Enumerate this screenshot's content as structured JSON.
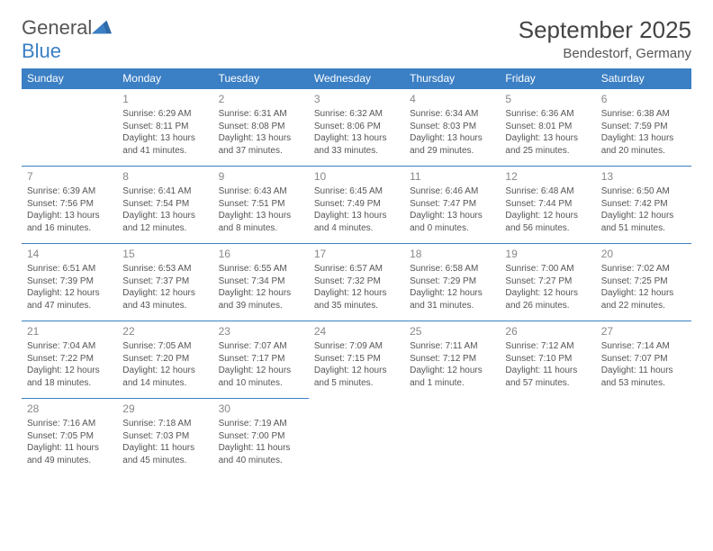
{
  "logo": {
    "text1": "General",
    "text2": "Blue",
    "color1": "#555555",
    "color2": "#3b7fc4"
  },
  "title": "September 2025",
  "location": "Bendestorf, Germany",
  "colors": {
    "header_bg": "#3b7fc4",
    "header_text": "#ffffff",
    "border": "#3b7fc4",
    "text": "#555555",
    "daynum": "#888888"
  },
  "day_headers": [
    "Sunday",
    "Monday",
    "Tuesday",
    "Wednesday",
    "Thursday",
    "Friday",
    "Saturday"
  ],
  "weeks": [
    [
      null,
      {
        "num": "1",
        "sunrise": "Sunrise: 6:29 AM",
        "sunset": "Sunset: 8:11 PM",
        "daylight": "Daylight: 13 hours and 41 minutes."
      },
      {
        "num": "2",
        "sunrise": "Sunrise: 6:31 AM",
        "sunset": "Sunset: 8:08 PM",
        "daylight": "Daylight: 13 hours and 37 minutes."
      },
      {
        "num": "3",
        "sunrise": "Sunrise: 6:32 AM",
        "sunset": "Sunset: 8:06 PM",
        "daylight": "Daylight: 13 hours and 33 minutes."
      },
      {
        "num": "4",
        "sunrise": "Sunrise: 6:34 AM",
        "sunset": "Sunset: 8:03 PM",
        "daylight": "Daylight: 13 hours and 29 minutes."
      },
      {
        "num": "5",
        "sunrise": "Sunrise: 6:36 AM",
        "sunset": "Sunset: 8:01 PM",
        "daylight": "Daylight: 13 hours and 25 minutes."
      },
      {
        "num": "6",
        "sunrise": "Sunrise: 6:38 AM",
        "sunset": "Sunset: 7:59 PM",
        "daylight": "Daylight: 13 hours and 20 minutes."
      }
    ],
    [
      {
        "num": "7",
        "sunrise": "Sunrise: 6:39 AM",
        "sunset": "Sunset: 7:56 PM",
        "daylight": "Daylight: 13 hours and 16 minutes."
      },
      {
        "num": "8",
        "sunrise": "Sunrise: 6:41 AM",
        "sunset": "Sunset: 7:54 PM",
        "daylight": "Daylight: 13 hours and 12 minutes."
      },
      {
        "num": "9",
        "sunrise": "Sunrise: 6:43 AM",
        "sunset": "Sunset: 7:51 PM",
        "daylight": "Daylight: 13 hours and 8 minutes."
      },
      {
        "num": "10",
        "sunrise": "Sunrise: 6:45 AM",
        "sunset": "Sunset: 7:49 PM",
        "daylight": "Daylight: 13 hours and 4 minutes."
      },
      {
        "num": "11",
        "sunrise": "Sunrise: 6:46 AM",
        "sunset": "Sunset: 7:47 PM",
        "daylight": "Daylight: 13 hours and 0 minutes."
      },
      {
        "num": "12",
        "sunrise": "Sunrise: 6:48 AM",
        "sunset": "Sunset: 7:44 PM",
        "daylight": "Daylight: 12 hours and 56 minutes."
      },
      {
        "num": "13",
        "sunrise": "Sunrise: 6:50 AM",
        "sunset": "Sunset: 7:42 PM",
        "daylight": "Daylight: 12 hours and 51 minutes."
      }
    ],
    [
      {
        "num": "14",
        "sunrise": "Sunrise: 6:51 AM",
        "sunset": "Sunset: 7:39 PM",
        "daylight": "Daylight: 12 hours and 47 minutes."
      },
      {
        "num": "15",
        "sunrise": "Sunrise: 6:53 AM",
        "sunset": "Sunset: 7:37 PM",
        "daylight": "Daylight: 12 hours and 43 minutes."
      },
      {
        "num": "16",
        "sunrise": "Sunrise: 6:55 AM",
        "sunset": "Sunset: 7:34 PM",
        "daylight": "Daylight: 12 hours and 39 minutes."
      },
      {
        "num": "17",
        "sunrise": "Sunrise: 6:57 AM",
        "sunset": "Sunset: 7:32 PM",
        "daylight": "Daylight: 12 hours and 35 minutes."
      },
      {
        "num": "18",
        "sunrise": "Sunrise: 6:58 AM",
        "sunset": "Sunset: 7:29 PM",
        "daylight": "Daylight: 12 hours and 31 minutes."
      },
      {
        "num": "19",
        "sunrise": "Sunrise: 7:00 AM",
        "sunset": "Sunset: 7:27 PM",
        "daylight": "Daylight: 12 hours and 26 minutes."
      },
      {
        "num": "20",
        "sunrise": "Sunrise: 7:02 AM",
        "sunset": "Sunset: 7:25 PM",
        "daylight": "Daylight: 12 hours and 22 minutes."
      }
    ],
    [
      {
        "num": "21",
        "sunrise": "Sunrise: 7:04 AM",
        "sunset": "Sunset: 7:22 PM",
        "daylight": "Daylight: 12 hours and 18 minutes."
      },
      {
        "num": "22",
        "sunrise": "Sunrise: 7:05 AM",
        "sunset": "Sunset: 7:20 PM",
        "daylight": "Daylight: 12 hours and 14 minutes."
      },
      {
        "num": "23",
        "sunrise": "Sunrise: 7:07 AM",
        "sunset": "Sunset: 7:17 PM",
        "daylight": "Daylight: 12 hours and 10 minutes."
      },
      {
        "num": "24",
        "sunrise": "Sunrise: 7:09 AM",
        "sunset": "Sunset: 7:15 PM",
        "daylight": "Daylight: 12 hours and 5 minutes."
      },
      {
        "num": "25",
        "sunrise": "Sunrise: 7:11 AM",
        "sunset": "Sunset: 7:12 PM",
        "daylight": "Daylight: 12 hours and 1 minute."
      },
      {
        "num": "26",
        "sunrise": "Sunrise: 7:12 AM",
        "sunset": "Sunset: 7:10 PM",
        "daylight": "Daylight: 11 hours and 57 minutes."
      },
      {
        "num": "27",
        "sunrise": "Sunrise: 7:14 AM",
        "sunset": "Sunset: 7:07 PM",
        "daylight": "Daylight: 11 hours and 53 minutes."
      }
    ],
    [
      {
        "num": "28",
        "sunrise": "Sunrise: 7:16 AM",
        "sunset": "Sunset: 7:05 PM",
        "daylight": "Daylight: 11 hours and 49 minutes."
      },
      {
        "num": "29",
        "sunrise": "Sunrise: 7:18 AM",
        "sunset": "Sunset: 7:03 PM",
        "daylight": "Daylight: 11 hours and 45 minutes."
      },
      {
        "num": "30",
        "sunrise": "Sunrise: 7:19 AM",
        "sunset": "Sunset: 7:00 PM",
        "daylight": "Daylight: 11 hours and 40 minutes."
      },
      null,
      null,
      null,
      null
    ]
  ]
}
